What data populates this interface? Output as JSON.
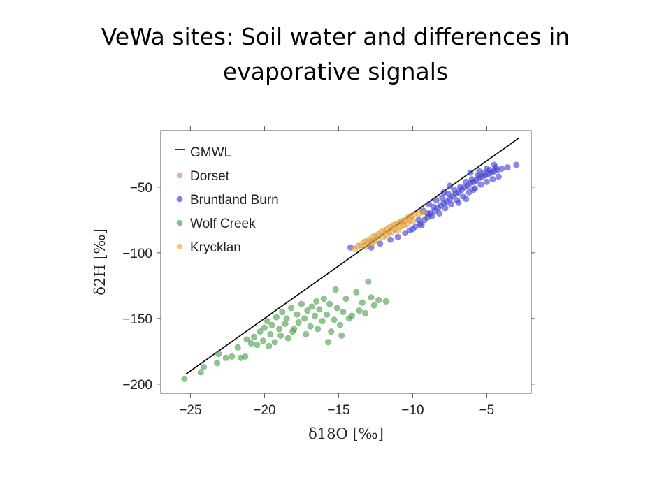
{
  "slide": {
    "title_line1": "VeWa sites: Soil water and differences in",
    "title_line2": "evaporative signals"
  },
  "chart_data": {
    "type": "scatter",
    "title": "",
    "xlabel": "δ18O [‰]",
    "ylabel": "δ2H [‰]",
    "xlim": [
      -27,
      -2
    ],
    "ylim": [
      -207,
      -7
    ],
    "xticks": [
      -25,
      -20,
      -15,
      -10,
      -5
    ],
    "yticks": [
      -50,
      -100,
      -150,
      -200
    ],
    "grid": false,
    "legend_position": "top-left",
    "series": [
      {
        "name": "GMWL",
        "kind": "line",
        "color": "#000000",
        "points": [
          [
            -25.3,
            -192.4
          ],
          [
            -2.8,
            -12.4
          ]
        ]
      },
      {
        "name": "Dorset",
        "kind": "scatter",
        "color": "#e07b7b",
        "points": []
      },
      {
        "name": "Bruntland Burn",
        "kind": "scatter",
        "color": "#3a3ae0",
        "points": [
          [
            -14.2,
            -96
          ],
          [
            -12.8,
            -96
          ],
          [
            -12.2,
            -93
          ],
          [
            -11.5,
            -90
          ],
          [
            -11,
            -88
          ],
          [
            -10.5,
            -85
          ],
          [
            -10.2,
            -83
          ],
          [
            -9.8,
            -80
          ],
          [
            -9.5,
            -78
          ],
          [
            -9.2,
            -75
          ],
          [
            -9,
            -73
          ],
          [
            -8.8,
            -70
          ],
          [
            -8.5,
            -68
          ],
          [
            -8.3,
            -66
          ],
          [
            -8.1,
            -64
          ],
          [
            -7.9,
            -62
          ],
          [
            -7.7,
            -61
          ],
          [
            -7.5,
            -59
          ],
          [
            -7.3,
            -57
          ],
          [
            -7.1,
            -55
          ],
          [
            -6.9,
            -54
          ],
          [
            -6.7,
            -52
          ],
          [
            -6.5,
            -50
          ],
          [
            -6.3,
            -49
          ],
          [
            -6.1,
            -47
          ],
          [
            -5.9,
            -46
          ],
          [
            -5.7,
            -45
          ],
          [
            -5.5,
            -43
          ],
          [
            -5.3,
            -42
          ],
          [
            -5.1,
            -41
          ],
          [
            -4.9,
            -40
          ],
          [
            -4.7,
            -39
          ],
          [
            -4.5,
            -38
          ],
          [
            -4.3,
            -37
          ],
          [
            -4,
            -36
          ],
          [
            -3.6,
            -35
          ],
          [
            -3,
            -33
          ],
          [
            -9.6,
            -75
          ],
          [
            -9.4,
            -79
          ],
          [
            -9,
            -70
          ],
          [
            -8.7,
            -72
          ],
          [
            -8.6,
            -65
          ],
          [
            -8.2,
            -70
          ],
          [
            -8,
            -58
          ],
          [
            -7.8,
            -66
          ],
          [
            -7.6,
            -55
          ],
          [
            -7.4,
            -63
          ],
          [
            -7.2,
            -52
          ],
          [
            -7,
            -60
          ],
          [
            -6.8,
            -50
          ],
          [
            -6.6,
            -57
          ],
          [
            -6.4,
            -46
          ],
          [
            -6.2,
            -54
          ],
          [
            -6,
            -44
          ],
          [
            -5.8,
            -51
          ],
          [
            -5.6,
            -41
          ],
          [
            -5.4,
            -48
          ],
          [
            -5.2,
            -39
          ],
          [
            -5,
            -46
          ],
          [
            -4.8,
            -37
          ],
          [
            -4.6,
            -44
          ],
          [
            -4.4,
            -35
          ],
          [
            -4.2,
            -42
          ],
          [
            -8.4,
            -60
          ],
          [
            -7.5,
            -49
          ],
          [
            -6.9,
            -62
          ],
          [
            -6.1,
            -39
          ],
          [
            -5.5,
            -38
          ],
          [
            -5,
            -36
          ],
          [
            -4.5,
            -33
          ],
          [
            -7.9,
            -54
          ],
          [
            -9.3,
            -68
          ],
          [
            -10,
            -82
          ],
          [
            -8.9,
            -63
          ],
          [
            -6.4,
            -59
          ],
          [
            -5.9,
            -52
          ]
        ]
      },
      {
        "name": "Wolf Creek",
        "kind": "scatter",
        "color": "#3fa33f",
        "points": [
          [
            -25.4,
            -196
          ],
          [
            -24.3,
            -191
          ],
          [
            -24.1,
            -187
          ],
          [
            -23.2,
            -184
          ],
          [
            -23.1,
            -177
          ],
          [
            -22.6,
            -180
          ],
          [
            -22.2,
            -179
          ],
          [
            -21.6,
            -180
          ],
          [
            -21.3,
            -179
          ],
          [
            -21.2,
            -166
          ],
          [
            -20.9,
            -169
          ],
          [
            -20.7,
            -164
          ],
          [
            -20.5,
            -170
          ],
          [
            -20.3,
            -160
          ],
          [
            -20.1,
            -167
          ],
          [
            -20,
            -157
          ],
          [
            -19.8,
            -152
          ],
          [
            -19.6,
            -162
          ],
          [
            -19.5,
            -155
          ],
          [
            -19.3,
            -168
          ],
          [
            -19.2,
            -149
          ],
          [
            -19,
            -158
          ],
          [
            -18.9,
            -163
          ],
          [
            -18.8,
            -145
          ],
          [
            -18.6,
            -154
          ],
          [
            -18.5,
            -150
          ],
          [
            -18.4,
            -165
          ],
          [
            -18.2,
            -142
          ],
          [
            -18,
            -158
          ],
          [
            -17.8,
            -147
          ],
          [
            -17.7,
            -153
          ],
          [
            -17.5,
            -139
          ],
          [
            -17.3,
            -150
          ],
          [
            -17.1,
            -144
          ],
          [
            -16.9,
            -156
          ],
          [
            -16.8,
            -141
          ],
          [
            -16.6,
            -148
          ],
          [
            -16.5,
            -137
          ],
          [
            -16.3,
            -143
          ],
          [
            -16.1,
            -152
          ],
          [
            -16,
            -135
          ],
          [
            -15.8,
            -147
          ],
          [
            -15.6,
            -139
          ],
          [
            -15.5,
            -160
          ],
          [
            -15.3,
            -151
          ],
          [
            -15.1,
            -142
          ],
          [
            -14.9,
            -155
          ],
          [
            -14.7,
            -145
          ],
          [
            -14.5,
            -135
          ],
          [
            -14.3,
            -150
          ],
          [
            -14.1,
            -148
          ],
          [
            -13.8,
            -130
          ],
          [
            -13.6,
            -144
          ],
          [
            -13.4,
            -138
          ],
          [
            -13,
            -122
          ],
          [
            -12.8,
            -134
          ],
          [
            -12.6,
            -140
          ],
          [
            -12.3,
            -136
          ],
          [
            -11.8,
            -137
          ],
          [
            -15.7,
            -168
          ],
          [
            -19.7,
            -171
          ],
          [
            -21.8,
            -172
          ],
          [
            -18.1,
            -160
          ],
          [
            -17.2,
            -162
          ],
          [
            -16.4,
            -158
          ],
          [
            -15.2,
            -128
          ],
          [
            -13.2,
            -146
          ],
          [
            -14.8,
            -163
          ]
        ]
      },
      {
        "name": "Krycklan",
        "kind": "scatter",
        "color": "#f3a72e",
        "points": [
          [
            -13.9,
            -97
          ],
          [
            -13.7,
            -95
          ],
          [
            -13.5,
            -94
          ],
          [
            -13.3,
            -92
          ],
          [
            -13.1,
            -91
          ],
          [
            -12.9,
            -90
          ],
          [
            -12.7,
            -88
          ],
          [
            -12.5,
            -87
          ],
          [
            -12.3,
            -86
          ],
          [
            -12.1,
            -84
          ],
          [
            -11.9,
            -83
          ],
          [
            -11.7,
            -82
          ],
          [
            -11.5,
            -80
          ],
          [
            -11.3,
            -79
          ],
          [
            -11.1,
            -78
          ],
          [
            -10.9,
            -77
          ],
          [
            -10.7,
            -76
          ],
          [
            -10.5,
            -75
          ],
          [
            -10.3,
            -73
          ],
          [
            -10.1,
            -72
          ],
          [
            -9.9,
            -71
          ],
          [
            -9.6,
            -70
          ],
          [
            -9.3,
            -69
          ],
          [
            -12.8,
            -93
          ],
          [
            -12.4,
            -90
          ],
          [
            -12,
            -88
          ],
          [
            -11.6,
            -85
          ],
          [
            -11.2,
            -82
          ],
          [
            -10.8,
            -80
          ],
          [
            -10.4,
            -78
          ],
          [
            -10,
            -76
          ],
          [
            -13.2,
            -95
          ],
          [
            -11.8,
            -86
          ],
          [
            -11,
            -83
          ],
          [
            -10.6,
            -79
          ],
          [
            -12.6,
            -91
          ],
          [
            -11.4,
            -84
          ],
          [
            -10.2,
            -75
          ]
        ]
      }
    ]
  }
}
